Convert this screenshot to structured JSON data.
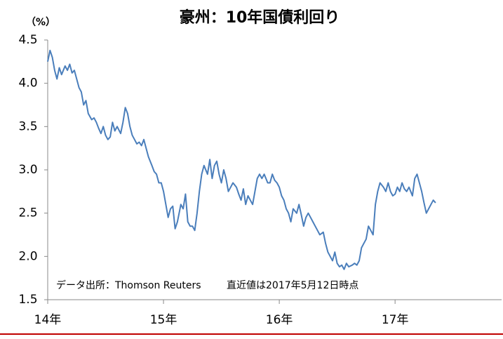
{
  "chart_data": {
    "type": "line",
    "title": "豪州：10年国債利回り",
    "y_unit": "（%）",
    "annotations": [
      "データ出所：Thomson Reuters",
      "直近値は2017年5月12日時点"
    ],
    "xlim": [
      2014,
      2017.92
    ],
    "xticks": [
      {
        "value": 2014,
        "label": "14年"
      },
      {
        "value": 2015,
        "label": "15年"
      },
      {
        "value": 2016,
        "label": "16年"
      },
      {
        "value": 2017,
        "label": "17年"
      }
    ],
    "ylim": [
      1.5,
      4.5
    ],
    "yticks": [
      1.5,
      {
        "value": 2,
        "label": "2.0"
      },
      2.5,
      {
        "value": 3,
        "label": "3.0"
      },
      3.5,
      {
        "value": 4,
        "label": "4.0"
      },
      4.5
    ],
    "grid": false,
    "series": [
      {
        "color": "#4a7ebb",
        "x": [
          2014.0,
          2014.02,
          2014.04,
          2014.06,
          2014.08,
          2014.1,
          2014.12,
          2014.15,
          2014.17,
          2014.19,
          2014.21,
          2014.23,
          2014.25,
          2014.27,
          2014.29,
          2014.31,
          2014.33,
          2014.35,
          2014.38,
          2014.4,
          2014.42,
          2014.44,
          2014.46,
          2014.48,
          2014.5,
          2014.52,
          2014.54,
          2014.56,
          2014.58,
          2014.6,
          2014.63,
          2014.65,
          2014.67,
          2014.69,
          2014.71,
          2014.73,
          2014.75,
          2014.77,
          2014.79,
          2014.81,
          2014.83,
          2014.85,
          2014.87,
          2014.9,
          2014.92,
          2014.94,
          2014.96,
          2014.98,
          2015.0,
          2015.02,
          2015.04,
          2015.06,
          2015.08,
          2015.1,
          2015.12,
          2015.15,
          2015.17,
          2015.19,
          2015.21,
          2015.23,
          2015.25,
          2015.27,
          2015.29,
          2015.31,
          2015.33,
          2015.35,
          2015.38,
          2015.4,
          2015.42,
          2015.44,
          2015.46,
          2015.48,
          2015.5,
          2015.52,
          2015.54,
          2015.56,
          2015.58,
          2015.6,
          2015.63,
          2015.65,
          2015.67,
          2015.69,
          2015.71,
          2015.73,
          2015.75,
          2015.77,
          2015.79,
          2015.81,
          2015.83,
          2015.85,
          2015.87,
          2015.9,
          2015.92,
          2015.94,
          2015.96,
          2015.98,
          2016.0,
          2016.02,
          2016.04,
          2016.06,
          2016.08,
          2016.1,
          2016.12,
          2016.15,
          2016.17,
          2016.19,
          2016.21,
          2016.23,
          2016.25,
          2016.27,
          2016.29,
          2016.31,
          2016.33,
          2016.35,
          2016.38,
          2016.4,
          2016.42,
          2016.44,
          2016.46,
          2016.48,
          2016.5,
          2016.52,
          2016.54,
          2016.56,
          2016.58,
          2016.6,
          2016.63,
          2016.65,
          2016.67,
          2016.69,
          2016.71,
          2016.73,
          2016.75,
          2016.77,
          2016.79,
          2016.81,
          2016.83,
          2016.85,
          2016.87,
          2016.9,
          2016.92,
          2016.94,
          2016.96,
          2016.98,
          2017.0,
          2017.02,
          2017.04,
          2017.06,
          2017.08,
          2017.1,
          2017.12,
          2017.15,
          2017.17,
          2017.19,
          2017.21,
          2017.23,
          2017.25,
          2017.27,
          2017.29,
          2017.31,
          2017.33,
          2017.35
        ],
        "values": [
          4.25,
          4.38,
          4.3,
          4.15,
          4.05,
          4.18,
          4.1,
          4.2,
          4.15,
          4.22,
          4.12,
          4.15,
          4.05,
          3.95,
          3.9,
          3.75,
          3.8,
          3.65,
          3.58,
          3.6,
          3.55,
          3.48,
          3.42,
          3.5,
          3.4,
          3.35,
          3.38,
          3.55,
          3.45,
          3.5,
          3.42,
          3.55,
          3.72,
          3.65,
          3.5,
          3.4,
          3.35,
          3.3,
          3.32,
          3.28,
          3.35,
          3.25,
          3.15,
          3.05,
          2.98,
          2.95,
          2.85,
          2.85,
          2.75,
          2.6,
          2.45,
          2.55,
          2.58,
          2.32,
          2.4,
          2.6,
          2.55,
          2.72,
          2.4,
          2.35,
          2.35,
          2.3,
          2.5,
          2.75,
          2.95,
          3.05,
          2.95,
          3.12,
          2.9,
          3.05,
          3.1,
          2.95,
          2.85,
          3.0,
          2.9,
          2.75,
          2.8,
          2.85,
          2.8,
          2.72,
          2.65,
          2.78,
          2.6,
          2.7,
          2.65,
          2.6,
          2.75,
          2.9,
          2.95,
          2.9,
          2.95,
          2.85,
          2.85,
          2.95,
          2.88,
          2.85,
          2.8,
          2.7,
          2.65,
          2.55,
          2.5,
          2.4,
          2.55,
          2.5,
          2.6,
          2.48,
          2.35,
          2.45,
          2.5,
          2.45,
          2.4,
          2.35,
          2.3,
          2.25,
          2.28,
          2.15,
          2.05,
          2.0,
          1.95,
          2.05,
          1.92,
          1.88,
          1.9,
          1.85,
          1.92,
          1.88,
          1.9,
          1.92,
          1.9,
          1.95,
          2.1,
          2.15,
          2.2,
          2.35,
          2.3,
          2.25,
          2.6,
          2.75,
          2.85,
          2.8,
          2.75,
          2.85,
          2.75,
          2.7,
          2.72,
          2.8,
          2.75,
          2.85,
          2.78,
          2.75,
          2.8,
          2.7,
          2.9,
          2.95,
          2.85,
          2.75,
          2.62,
          2.5,
          2.55,
          2.6,
          2.65,
          2.62
        ]
      }
    ]
  }
}
